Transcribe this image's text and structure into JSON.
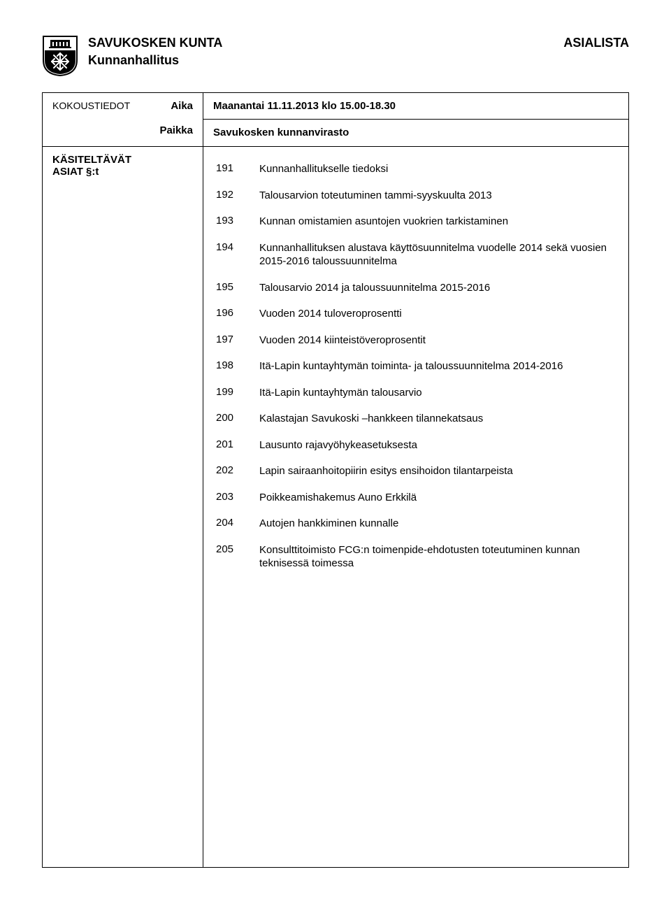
{
  "header": {
    "org_line1": "SAVUKOSKEN KUNTA",
    "org_line2": "Kunnanhallitus",
    "page_label": "ASIALISTA"
  },
  "meeting": {
    "label_kokous": "KOKOUSTIEDOT",
    "label_aika": "Aika",
    "label_paikka": "Paikka",
    "time": "Maanantai 11.11.2013 klo 15.00-18.30",
    "place": "Savukosken kunnanvirasto"
  },
  "processed": {
    "label_line1": "KÄSITELTÄVÄT",
    "label_line2": "ASIAT §:t"
  },
  "items": [
    {
      "num": "191",
      "desc": "Kunnanhallitukselle tiedoksi"
    },
    {
      "num": "192",
      "desc": "Talousarvion toteutuminen tammi-syyskuulta 2013"
    },
    {
      "num": "193",
      "desc": "Kunnan omistamien asuntojen vuokrien tarkistaminen"
    },
    {
      "num": "194",
      "desc": "Kunnanhallituksen alustava käyttösuunnitelma vuodelle 2014 sekä vuosien 2015-2016 taloussuunnitelma"
    },
    {
      "num": "195",
      "desc": "Talousarvio 2014 ja taloussuunnitelma 2015-2016"
    },
    {
      "num": "196",
      "desc": "Vuoden 2014 tuloveroprosentti"
    },
    {
      "num": "197",
      "desc": "Vuoden 2014 kiinteistöveroprosentit"
    },
    {
      "num": "198",
      "desc": "Itä-Lapin kuntayhtymän toiminta- ja taloussuunnitelma 2014-2016"
    },
    {
      "num": "199",
      "desc": "Itä-Lapin kuntayhtymän talousarvio"
    },
    {
      "num": "200",
      "desc": "Kalastajan Savukoski –hankkeen tilannekatsaus"
    },
    {
      "num": "201",
      "desc": "Lausunto rajavyöhykeasetuksesta"
    },
    {
      "num": "202",
      "desc": "Lapin sairaanhoitopiirin esitys ensihoidon tilantarpeista"
    },
    {
      "num": "203",
      "desc": "Poikkeamishakemus Auno Erkkilä"
    },
    {
      "num": "204",
      "desc": "Autojen hankkiminen kunnalle"
    },
    {
      "num": "205",
      "desc": "Konsulttitoimisto FCG:n toimenpide-ehdotusten toteutuminen kunnan teknisessä toimessa"
    }
  ]
}
